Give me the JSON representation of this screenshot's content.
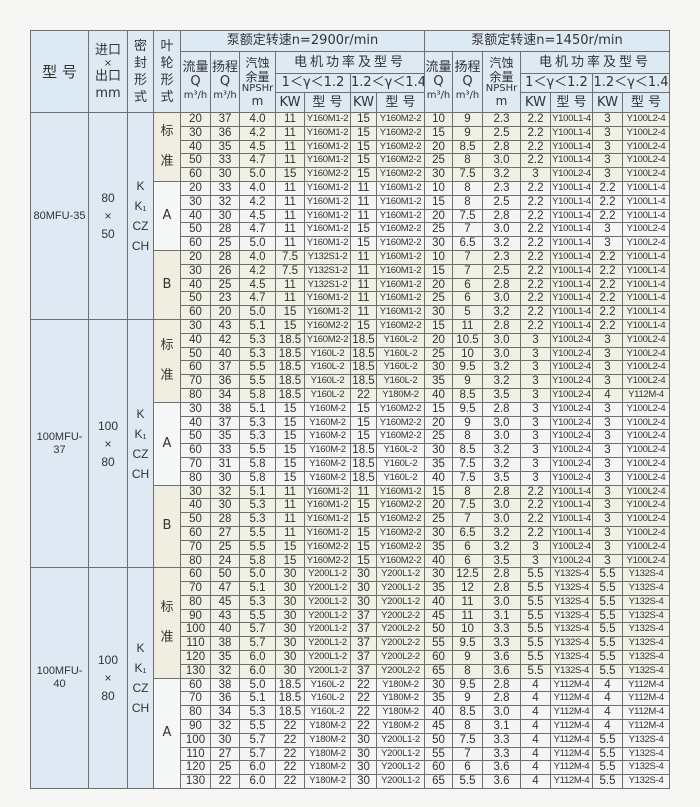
{
  "header": {
    "model": "型 号",
    "size": [
      "进口",
      "×",
      "出口",
      "mm"
    ],
    "seal": [
      "密",
      "封",
      "形",
      "式"
    ],
    "impeller": [
      "叶",
      "轮",
      "形",
      "式"
    ],
    "speed_2900": "泵额定转速n=2900r/min",
    "speed_1450": "泵额定转速n=1450r/min",
    "flow": [
      "流量",
      "Q",
      "m³/h"
    ],
    "head": [
      "扬程",
      "Q",
      "m³/h"
    ],
    "npsh": [
      "汽蚀",
      "余量",
      "NPSHr",
      "m"
    ],
    "motor": "电机功率及型号",
    "range1": "1＜γ＜1.2",
    "range2": "1.2＜γ＜1.4",
    "kw": "KW",
    "type": "型 号"
  },
  "colors": {
    "header_bg": "#dde9f3",
    "standard_bg": "#efeee0",
    "a_bg": "#f6f7f7"
  },
  "models": [
    {
      "name": "80MFU-35",
      "size": [
        "80",
        "×",
        "50"
      ],
      "seal": [
        "K",
        "K₁",
        "CZ",
        "CH"
      ],
      "impellers": [
        {
          "label": [
            "标",
            "准"
          ],
          "rows": [
            [
              "20",
              "37",
              "4.0",
              "11",
              "Y160M1-2",
              "15",
              "Y160M2-2",
              "10",
              "9",
              "2.3",
              "2.2",
              "Y100L1-4",
              "3",
              "Y100L2-4"
            ],
            [
              "30",
              "36",
              "4.2",
              "11",
              "Y160M1-2",
              "15",
              "Y160M2-2",
              "15",
              "9",
              "2.5",
              "2.2",
              "Y100L1-4",
              "3",
              "Y100L2-4"
            ],
            [
              "40",
              "35",
              "4.5",
              "11",
              "Y160M1-2",
              "15",
              "Y160M2-2",
              "20",
              "8.5",
              "2.8",
              "2.2",
              "Y100L1-4",
              "3",
              "Y100L2-4"
            ],
            [
              "50",
              "33",
              "4.7",
              "11",
              "Y160M1-2",
              "15",
              "Y160M2-2",
              "25",
              "8",
              "3.0",
              "2.2",
              "Y100L1-4",
              "3",
              "Y100L2-4"
            ],
            [
              "60",
              "30",
              "5.0",
              "15",
              "Y160M2-2",
              "15",
              "Y160M2-2",
              "30",
              "7.5",
              "3.2",
              "3",
              "Y100L2-4",
              "3",
              "Y100L2-4"
            ]
          ]
        },
        {
          "label": [
            "A"
          ],
          "rows": [
            [
              "20",
              "33",
              "4.0",
              "11",
              "Y160M1-2",
              "11",
              "Y160M1-2",
              "10",
              "8",
              "2.3",
              "2.2",
              "Y100L1-4",
              "2.2",
              "Y100L1-4"
            ],
            [
              "30",
              "32",
              "4.2",
              "11",
              "Y160M1-2",
              "11",
              "Y160M1-2",
              "15",
              "8",
              "2.5",
              "2.2",
              "Y100L1-4",
              "2.2",
              "Y100L1-4"
            ],
            [
              "40",
              "30",
              "4.5",
              "11",
              "Y160M1-2",
              "11",
              "Y160M1-2",
              "20",
              "7.5",
              "2.8",
              "2.2",
              "Y100L1-4",
              "2.2",
              "Y100L1-4"
            ],
            [
              "50",
              "28",
              "4.7",
              "11",
              "Y160M1-2",
              "15",
              "Y160M2-2",
              "25",
              "7",
              "3.0",
              "2.2",
              "Y100L1-4",
              "3",
              "Y100L2-4"
            ],
            [
              "60",
              "25",
              "5.0",
              "11",
              "Y160M1-2",
              "15",
              "Y160M2-2",
              "30",
              "6.5",
              "3.2",
              "2.2",
              "Y100L1-4",
              "3",
              "Y100L2-4"
            ]
          ]
        },
        {
          "label": [
            "B"
          ],
          "rows": [
            [
              "20",
              "28",
              "4.0",
              "7.5",
              "Y132S1-2",
              "11",
              "Y160M1-2",
              "10",
              "7",
              "2.3",
              "2.2",
              "Y100L1-4",
              "2.2",
              "Y100L1-4"
            ],
            [
              "30",
              "26",
              "4.2",
              "7.5",
              "Y132S1-2",
              "11",
              "Y160M1-2",
              "15",
              "7",
              "2.5",
              "2.2",
              "Y100L1-4",
              "2.2",
              "Y100L1-4"
            ],
            [
              "40",
              "25",
              "4.5",
              "11",
              "Y132S1-2",
              "11",
              "Y160M1-2",
              "20",
              "6",
              "2.8",
              "2.2",
              "Y100L1-4",
              "2.2",
              "Y100L1-4"
            ],
            [
              "50",
              "23",
              "4.7",
              "11",
              "Y160M1-2",
              "11",
              "Y160M1-2",
              "25",
              "6",
              "3.0",
              "2.2",
              "Y100L1-4",
              "2.2",
              "Y100L1-4"
            ],
            [
              "60",
              "20",
              "5.0",
              "15",
              "Y160M1-2",
              "11",
              "Y160M1-2",
              "30",
              "5",
              "3.2",
              "2.2",
              "Y100L1-4",
              "2.2",
              "Y100L1-4"
            ]
          ]
        }
      ]
    },
    {
      "name": "100MFU-37",
      "size": [
        "100",
        "×",
        "80"
      ],
      "seal": [
        "K",
        "K₁",
        "CZ",
        "CH"
      ],
      "impellers": [
        {
          "label": [
            "标",
            "准"
          ],
          "rows": [
            [
              "30",
              "43",
              "5.1",
              "15",
              "Y160M2-2",
              "15",
              "Y160M2-2",
              "15",
              "11",
              "2.8",
              "2.2",
              "Y100L1-4",
              "2.2",
              "Y100L1-4"
            ],
            [
              "40",
              "42",
              "5.3",
              "18.5",
              "Y160M2-2",
              "18.5",
              "Y160L-2",
              "20",
              "10.5",
              "3.0",
              "3",
              "Y100L2-4",
              "3",
              "Y100L2-4"
            ],
            [
              "50",
              "40",
              "5.3",
              "18.5",
              "Y160L-2",
              "18.5",
              "Y160L-2",
              "25",
              "10",
              "3.0",
              "3",
              "Y100L2-4",
              "3",
              "Y100L2-4"
            ],
            [
              "60",
              "37",
              "5.5",
              "18.5",
              "Y160L-2",
              "18.5",
              "Y160L-2",
              "30",
              "9.5",
              "3.2",
              "3",
              "Y100L2-4",
              "3",
              "Y100L2-4"
            ],
            [
              "70",
              "36",
              "5.5",
              "18.5",
              "Y160L-2",
              "18.5",
              "Y160L-2",
              "35",
              "9",
              "3.2",
              "3",
              "Y100L2-4",
              "3",
              "Y100L2-4"
            ],
            [
              "80",
              "34",
              "5.8",
              "18.5",
              "Y160L-2",
              "22",
              "Y180M-2",
              "40",
              "8.5",
              "3.5",
              "3",
              "Y100L2-4",
              "4",
              "Y112M-4"
            ]
          ]
        },
        {
          "label": [
            "A"
          ],
          "rows": [
            [
              "30",
              "38",
              "5.1",
              "15",
              "Y160M-2",
              "15",
              "Y160M2-2",
              "15",
              "9.5",
              "2.8",
              "3",
              "Y100L2-4",
              "3",
              "Y100L2-4"
            ],
            [
              "40",
              "37",
              "5.3",
              "15",
              "Y160M-2",
              "15",
              "Y160M2-2",
              "20",
              "9",
              "3.0",
              "3",
              "Y100L2-4",
              "3",
              "Y100L2-4"
            ],
            [
              "50",
              "35",
              "5.3",
              "15",
              "Y160M-2",
              "15",
              "Y160M2-2",
              "25",
              "8",
              "3.0",
              "3",
              "Y100L2-4",
              "3",
              "Y100L2-4"
            ],
            [
              "60",
              "33",
              "5.5",
              "15",
              "Y160M-2",
              "18.5",
              "Y160L-2",
              "30",
              "8.5",
              "3.2",
              "3",
              "Y100L2-4",
              "3",
              "Y100L2-4"
            ],
            [
              "70",
              "31",
              "5.8",
              "15",
              "Y160M-2",
              "18.5",
              "Y160L-2",
              "35",
              "7.5",
              "3.2",
              "3",
              "Y100L2-4",
              "3",
              "Y100L2-4"
            ],
            [
              "80",
              "30",
              "5.8",
              "15",
              "Y160M-2",
              "18.5",
              "Y160L-2",
              "40",
              "7.5",
              "3.5",
              "3",
              "Y100L2-4",
              "3",
              "Y100L2-4"
            ]
          ]
        },
        {
          "label": [
            "B"
          ],
          "rows": [
            [
              "30",
              "32",
              "5.1",
              "11",
              "Y160M1-2",
              "11",
              "Y160M1-2",
              "15",
              "8",
              "2.8",
              "2.2",
              "Y100L1-4",
              "3",
              "Y100L2-4"
            ],
            [
              "40",
              "30",
              "5.3",
              "11",
              "Y160M1-2",
              "15",
              "Y160M2-2",
              "20",
              "7.5",
              "3.0",
              "2.2",
              "Y100L1-4",
              "3",
              "Y100L2-4"
            ],
            [
              "50",
              "28",
              "5.3",
              "11",
              "Y160M1-2",
              "15",
              "Y160M2-2",
              "25",
              "7",
              "3.0",
              "2.2",
              "Y100L1-4",
              "3",
              "Y100L2-4"
            ],
            [
              "60",
              "27",
              "5.5",
              "11",
              "Y160M1-2",
              "15",
              "Y160M2-2",
              "30",
              "6.5",
              "3.2",
              "2.2",
              "Y100L1-4",
              "3",
              "Y100L2-4"
            ],
            [
              "70",
              "25",
              "5.5",
              "15",
              "Y160M2-2",
              "15",
              "Y160M2-2",
              "35",
              "6",
              "3.2",
              "3",
              "Y100L2-4",
              "3",
              "Y100L2-4"
            ],
            [
              "80",
              "24",
              "5.8",
              "15",
              "Y160M2-2",
              "15",
              "Y160M2-2",
              "40",
              "6",
              "3.5",
              "3",
              "Y100L2-4",
              "3",
              "Y100L2-4"
            ]
          ]
        }
      ]
    },
    {
      "name": "100MFU-40",
      "size": [
        "100",
        "×",
        "80"
      ],
      "seal": [
        "K",
        "K₁",
        "CZ",
        "CH"
      ],
      "impellers": [
        {
          "label": [
            "标",
            "准"
          ],
          "rows": [
            [
              "60",
              "50",
              "5.0",
              "30",
              "Y200L1-2",
              "30",
              "Y200L1-2",
              "30",
              "12.5",
              "2.8",
              "5.5",
              "Y132S-4",
              "5.5",
              "Y132S-4"
            ],
            [
              "70",
              "47",
              "5.1",
              "30",
              "Y200L1-2",
              "30",
              "Y200L1-2",
              "35",
              "12",
              "2.8",
              "5.5",
              "Y132S-4",
              "5.5",
              "Y132S-4"
            ],
            [
              "80",
              "45",
              "5.3",
              "30",
              "Y200L1-2",
              "30",
              "Y200L1-2",
              "40",
              "11",
              "3.0",
              "5.5",
              "Y132S-4",
              "5.5",
              "Y132S-4"
            ],
            [
              "90",
              "43",
              "5.5",
              "30",
              "Y200L1-2",
              "37",
              "Y200L2-2",
              "45",
              "11",
              "3.1",
              "5.5",
              "Y132S-4",
              "5.5",
              "Y132S-4"
            ],
            [
              "100",
              "40",
              "5.7",
              "30",
              "Y200L1-2",
              "37",
              "Y200L2-2",
              "50",
              "10",
              "3.3",
              "5.5",
              "Y132S-4",
              "5.5",
              "Y132S-4"
            ],
            [
              "110",
              "38",
              "5.7",
              "30",
              "Y200L1-2",
              "37",
              "Y200L2-2",
              "55",
              "9.5",
              "3.3",
              "5.5",
              "Y132S-4",
              "5.5",
              "Y132S-4"
            ],
            [
              "120",
              "35",
              "6.0",
              "30",
              "Y200L1-2",
              "37",
              "Y200L2-2",
              "60",
              "9",
              "3.6",
              "5.5",
              "Y132S-4",
              "5.5",
              "Y132S-4"
            ],
            [
              "130",
              "32",
              "6.0",
              "30",
              "Y200L1-2",
              "37",
              "Y200L2-2",
              "65",
              "8",
              "3.6",
              "5.5",
              "Y132S-4",
              "5.5",
              "Y132S-4"
            ]
          ]
        },
        {
          "label": [
            "A"
          ],
          "rows": [
            [
              "60",
              "38",
              "5.0",
              "18.5",
              "Y160L-2",
              "22",
              "Y180M-2",
              "30",
              "9.5",
              "2.8",
              "4",
              "Y112M-4",
              "4",
              "Y112M-4"
            ],
            [
              "70",
              "36",
              "5.1",
              "18.5",
              "Y160L-2",
              "22",
              "Y180M-2",
              "35",
              "9",
              "2.8",
              "4",
              "Y112M-4",
              "4",
              "Y112M-4"
            ],
            [
              "80",
              "34",
              "5.3",
              "18.5",
              "Y160L-2",
              "22",
              "Y180M-2",
              "40",
              "8.5",
              "3.0",
              "4",
              "Y112M-4",
              "4",
              "Y112M-4"
            ],
            [
              "90",
              "32",
              "5.5",
              "22",
              "Y180M-2",
              "22",
              "Y180M-2",
              "45",
              "8",
              "3.1",
              "4",
              "Y112M-4",
              "4",
              "Y112M-4"
            ],
            [
              "100",
              "30",
              "5.7",
              "22",
              "Y180M-2",
              "30",
              "Y200L1-2",
              "50",
              "7.5",
              "3.3",
              "4",
              "Y112M-4",
              "5.5",
              "Y132S-4"
            ],
            [
              "110",
              "27",
              "5.7",
              "22",
              "Y180M-2",
              "30",
              "Y200L1-2",
              "55",
              "7",
              "3.3",
              "4",
              "Y112M-4",
              "5.5",
              "Y132S-4"
            ],
            [
              "120",
              "25",
              "6.0",
              "22",
              "Y180M-2",
              "30",
              "Y200L1-2",
              "60",
              "6",
              "3.6",
              "4",
              "Y112M-4",
              "5.5",
              "Y132S-4"
            ],
            [
              "130",
              "22",
              "6.0",
              "22",
              "Y180M-2",
              "30",
              "Y200L1-2",
              "65",
              "5.5",
              "3.6",
              "4",
              "Y112M-4",
              "5.5",
              "Y132S-4"
            ]
          ]
        }
      ]
    }
  ]
}
